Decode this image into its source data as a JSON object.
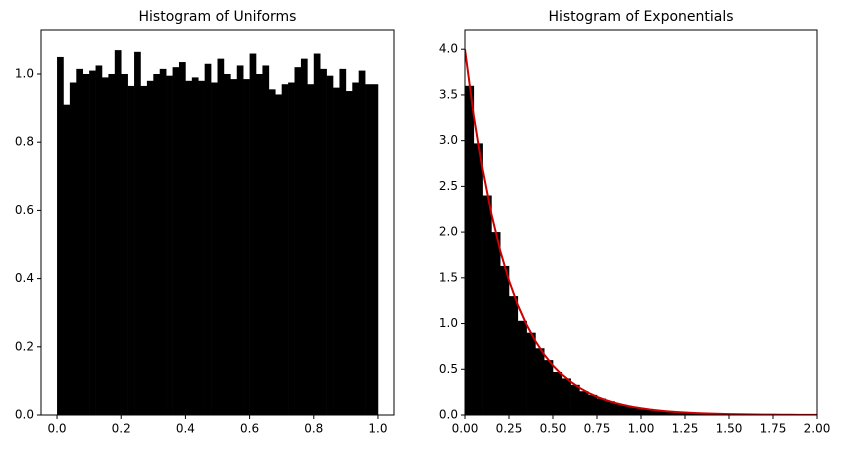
{
  "chart_data": [
    {
      "type": "histogram",
      "title": "Histogram of Uniforms",
      "color": "#000000",
      "bins": [
        0,
        0.02,
        0.04,
        0.06,
        0.08,
        0.1,
        0.12,
        0.14,
        0.16,
        0.18,
        0.2,
        0.22,
        0.24,
        0.26,
        0.28,
        0.3,
        0.32,
        0.34,
        0.36,
        0.38,
        0.4,
        0.42,
        0.44,
        0.46,
        0.48,
        0.5,
        0.52,
        0.54,
        0.56,
        0.58,
        0.6,
        0.62,
        0.64,
        0.66,
        0.68,
        0.7,
        0.72,
        0.74,
        0.76,
        0.78,
        0.8,
        0.82,
        0.84,
        0.86,
        0.88,
        0.9,
        0.92,
        0.94,
        0.96,
        0.98,
        1.0
      ],
      "values": [
        1.05,
        0.91,
        0.975,
        1.015,
        1.0,
        1.01,
        1.025,
        0.99,
        1.0,
        1.07,
        1.0,
        0.965,
        1.065,
        0.965,
        0.98,
        1.0,
        1.015,
        0.995,
        1.02,
        1.035,
        0.98,
        0.99,
        0.98,
        1.03,
        0.975,
        1.045,
        1.0,
        0.985,
        1.025,
        0.985,
        1.06,
        1.0,
        1.025,
        0.955,
        0.94,
        0.97,
        0.975,
        1.02,
        1.045,
        0.97,
        1.06,
        1.015,
        0.995,
        0.96,
        1.015,
        0.95,
        0.975,
        1.01,
        0.97,
        0.97
      ],
      "xlim": [
        -0.05,
        1.05
      ],
      "ylim": [
        0,
        1.129
      ],
      "xticks": [
        {
          "value": 0,
          "label": "0.0"
        },
        0.2,
        0.4,
        0.6,
        0.8,
        {
          "value": 1,
          "label": "1.0"
        }
      ],
      "yticks": [
        {
          "value": 0,
          "label": "0.0"
        },
        0.2,
        0.4,
        0.6,
        0.8,
        {
          "value": 1,
          "label": "1.0"
        }
      ]
    },
    {
      "type": "histogram",
      "title": "Histogram of Exponentials",
      "color": "#000000",
      "bins": [
        0,
        0.05,
        0.1,
        0.15,
        0.2,
        0.25,
        0.3,
        0.35,
        0.4,
        0.45,
        0.5,
        0.55,
        0.6,
        0.65,
        0.7,
        0.75,
        0.8,
        0.85,
        0.9,
        0.95,
        1.0,
        1.05,
        1.1,
        1.15,
        1.2,
        1.25,
        1.3,
        1.35,
        1.4,
        1.45,
        1.5,
        1.55,
        1.6,
        1.65,
        1.7,
        1.75,
        1.8,
        1.85,
        1.9,
        1.95,
        2.0
      ],
      "values": [
        3.6,
        2.97,
        2.4,
        2.0,
        1.63,
        1.3,
        1.03,
        0.9,
        0.73,
        0.6,
        0.47,
        0.4,
        0.33,
        0.26,
        0.22,
        0.18,
        0.15,
        0.12,
        0.1,
        0.08,
        0.065,
        0.053,
        0.044,
        0.036,
        0.029,
        0.024,
        0.019,
        0.016,
        0.013,
        0.011,
        0.009,
        0.007,
        0.006,
        0.005,
        0.004,
        0.003,
        0.003,
        0.002,
        0.002,
        0.001
      ],
      "overlay": {
        "type": "line",
        "color": "#cc0000",
        "x": [
          0,
          0.05,
          0.1,
          0.15,
          0.2,
          0.25,
          0.3,
          0.35,
          0.4,
          0.45,
          0.5,
          0.55,
          0.6,
          0.65,
          0.7,
          0.75,
          0.8,
          0.85,
          0.9,
          0.95,
          1.0,
          1.05,
          1.1,
          1.15,
          1.2,
          1.25,
          1.3,
          1.35,
          1.4,
          1.45,
          1.5,
          1.55,
          1.6,
          1.65,
          1.7,
          1.75,
          1.8,
          1.85,
          1.9,
          1.95,
          2.0
        ],
        "values": [
          4,
          3.2749,
          2.6813,
          2.1952,
          1.7973,
          1.4715,
          1.2048,
          0.9864,
          0.8076,
          0.6612,
          0.5413,
          0.4432,
          0.3629,
          0.2971,
          0.2432,
          0.1991,
          0.1631,
          0.1335,
          0.1093,
          0.0895,
          0.0733,
          0.06,
          0.0491,
          0.0402,
          0.0329,
          0.027,
          0.0221,
          0.0181,
          0.0148,
          0.0121,
          0.0099,
          0.0081,
          0.0066,
          0.0054,
          0.0045,
          0.0036,
          0.003,
          0.0024,
          0.002,
          0.0016,
          0.0013
        ]
      },
      "xlim": [
        0,
        2
      ],
      "ylim": [
        0,
        4.21
      ],
      "xticks": [
        {
          "value": 0,
          "label": "0.00"
        },
        0.25,
        {
          "value": 0.5,
          "label": "0.50"
        },
        0.75,
        {
          "value": 1,
          "label": "1.00"
        },
        1.25,
        {
          "value": 1.5,
          "label": "1.50"
        },
        1.75,
        {
          "value": 2,
          "label": "2.00"
        }
      ],
      "yticks": [
        {
          "value": 0,
          "label": "0.0"
        },
        0.5,
        {
          "value": 1,
          "label": "1.0"
        },
        1.5,
        {
          "value": 2,
          "label": "2.0"
        },
        2.5,
        {
          "value": 3,
          "label": "3.0"
        },
        3.5,
        {
          "value": 4,
          "label": "4.0"
        }
      ]
    }
  ]
}
